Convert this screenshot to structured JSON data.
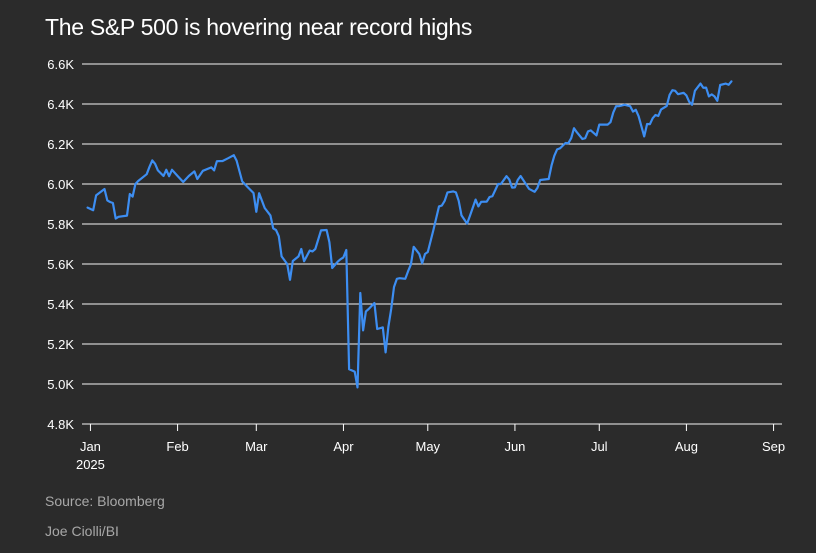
{
  "page": {
    "title": "The S&P 500 is hovering near record highs",
    "source": "Source: Bloomberg",
    "credit": "Joe Ciolli/BI"
  },
  "colors": {
    "background": "#2b2b2b",
    "line": "#3d8ef2",
    "grid": "#ffffff",
    "text": "#ffffff",
    "muted": "#a8a8a8"
  },
  "chart_data": {
    "type": "line",
    "title": "The S&P 500 is hovering near record highs",
    "xlabel": "",
    "ylabel": "",
    "ylim": [
      4800,
      6600
    ],
    "xlim": [
      -3,
      246
    ],
    "grid": true,
    "yticks": [
      {
        "value": 4800,
        "label": "4.8K"
      },
      {
        "value": 5000,
        "label": "5.0K"
      },
      {
        "value": 5200,
        "label": "5.2K"
      },
      {
        "value": 5400,
        "label": "5.4K"
      },
      {
        "value": 5600,
        "label": "5.6K"
      },
      {
        "value": 5800,
        "label": "5.8K"
      },
      {
        "value": 6000,
        "label": "6.0K"
      },
      {
        "value": 6200,
        "label": "6.2K"
      },
      {
        "value": 6400,
        "label": "6.4K"
      },
      {
        "value": 6600,
        "label": "6.6K"
      }
    ],
    "xticks": [
      {
        "day": 0,
        "label": "Jan",
        "sublabel": "2025"
      },
      {
        "day": 31,
        "label": "Feb"
      },
      {
        "day": 59,
        "label": "Mar"
      },
      {
        "day": 90,
        "label": "Apr"
      },
      {
        "day": 120,
        "label": "May"
      },
      {
        "day": 151,
        "label": "Jun"
      },
      {
        "day": 181,
        "label": "Jul"
      },
      {
        "day": 212,
        "label": "Aug"
      },
      {
        "day": 243,
        "label": "Sep"
      }
    ],
    "series": [
      {
        "name": "S&P 500",
        "x_unit": "days since Jan 1, 2025",
        "points": [
          [
            -1,
            5882
          ],
          [
            1,
            5869
          ],
          [
            2,
            5943
          ],
          [
            5,
            5975
          ],
          [
            6,
            5918
          ],
          [
            7,
            5910
          ],
          [
            8,
            5905
          ],
          [
            9,
            5827
          ],
          [
            10,
            5836
          ],
          [
            13,
            5842
          ],
          [
            14,
            5950
          ],
          [
            15,
            5937
          ],
          [
            16,
            6000
          ],
          [
            17,
            6015
          ],
          [
            20,
            6049
          ],
          [
            21,
            6086
          ],
          [
            22,
            6118
          ],
          [
            23,
            6101
          ],
          [
            24,
            6068
          ],
          [
            26,
            6040
          ],
          [
            27,
            6071
          ],
          [
            28,
            6039
          ],
          [
            29,
            6071
          ],
          [
            31,
            6040
          ],
          [
            33,
            6010
          ],
          [
            35,
            6040
          ],
          [
            37,
            6063
          ],
          [
            38,
            6025
          ],
          [
            40,
            6066
          ],
          [
            43,
            6083
          ],
          [
            44,
            6068
          ],
          [
            45,
            6114
          ],
          [
            47,
            6115
          ],
          [
            49,
            6129
          ],
          [
            51,
            6144
          ],
          [
            52,
            6117
          ],
          [
            54,
            6013
          ],
          [
            56,
            5983
          ],
          [
            58,
            5955
          ],
          [
            59,
            5861
          ],
          [
            60,
            5954
          ],
          [
            62,
            5880
          ],
          [
            64,
            5843
          ],
          [
            65,
            5778
          ],
          [
            66,
            5770
          ],
          [
            67,
            5739
          ],
          [
            68,
            5638
          ],
          [
            70,
            5600
          ],
          [
            71,
            5521
          ],
          [
            72,
            5615
          ],
          [
            74,
            5638
          ],
          [
            75,
            5675
          ],
          [
            76,
            5614
          ],
          [
            78,
            5667
          ],
          [
            79,
            5663
          ],
          [
            80,
            5675
          ],
          [
            82,
            5768
          ],
          [
            84,
            5770
          ],
          [
            85,
            5709
          ],
          [
            86,
            5580
          ],
          [
            88,
            5612
          ],
          [
            89,
            5624
          ],
          [
            90,
            5633
          ],
          [
            91,
            5670
          ],
          [
            92,
            5074
          ],
          [
            94,
            5062
          ],
          [
            95,
            4983
          ],
          [
            96,
            5455
          ],
          [
            97,
            5268
          ],
          [
            98,
            5363
          ],
          [
            99,
            5375
          ],
          [
            101,
            5405
          ],
          [
            102,
            5275
          ],
          [
            104,
            5283
          ],
          [
            105,
            5158
          ],
          [
            106,
            5287
          ],
          [
            107,
            5375
          ],
          [
            108,
            5485
          ],
          [
            109,
            5526
          ],
          [
            110,
            5529
          ],
          [
            112,
            5526
          ],
          [
            113,
            5564
          ],
          [
            114,
            5598
          ],
          [
            115,
            5686
          ],
          [
            117,
            5650
          ],
          [
            118,
            5604
          ],
          [
            119,
            5650
          ],
          [
            120,
            5660
          ],
          [
            122,
            5770
          ],
          [
            124,
            5888
          ],
          [
            125,
            5892
          ],
          [
            126,
            5916
          ],
          [
            127,
            5958
          ],
          [
            129,
            5963
          ],
          [
            130,
            5958
          ],
          [
            131,
            5916
          ],
          [
            132,
            5843
          ],
          [
            134,
            5802
          ],
          [
            135,
            5842
          ],
          [
            137,
            5922
          ],
          [
            138,
            5888
          ],
          [
            139,
            5911
          ],
          [
            141,
            5912
          ],
          [
            142,
            5935
          ],
          [
            143,
            5939
          ],
          [
            144,
            5970
          ],
          [
            145,
            6000
          ],
          [
            146,
            6000
          ],
          [
            148,
            6039
          ],
          [
            149,
            6022
          ],
          [
            150,
            5982
          ],
          [
            151,
            5983
          ],
          [
            152,
            6020
          ],
          [
            153,
            6040
          ],
          [
            156,
            5976
          ],
          [
            158,
            5961
          ],
          [
            159,
            5980
          ],
          [
            160,
            6020
          ],
          [
            163,
            6025
          ],
          [
            164,
            6092
          ],
          [
            165,
            6141
          ],
          [
            166,
            6173
          ],
          [
            167,
            6178
          ],
          [
            169,
            6205
          ],
          [
            170,
            6204
          ],
          [
            171,
            6229
          ],
          [
            172,
            6279
          ],
          [
            173,
            6259
          ],
          [
            175,
            6225
          ],
          [
            176,
            6229
          ],
          [
            177,
            6263
          ],
          [
            178,
            6268
          ],
          [
            180,
            6243
          ],
          [
            181,
            6297
          ],
          [
            184,
            6297
          ],
          [
            185,
            6309
          ],
          [
            186,
            6358
          ],
          [
            187,
            6389
          ],
          [
            188,
            6389
          ],
          [
            190,
            6396
          ],
          [
            192,
            6389
          ],
          [
            193,
            6362
          ],
          [
            194,
            6371
          ],
          [
            195,
            6339
          ],
          [
            197,
            6238
          ],
          [
            198,
            6300
          ],
          [
            199,
            6299
          ],
          [
            200,
            6329
          ],
          [
            201,
            6345
          ],
          [
            202,
            6340
          ],
          [
            203,
            6373
          ],
          [
            205,
            6390
          ],
          [
            206,
            6446
          ],
          [
            207,
            6469
          ],
          [
            208,
            6466
          ],
          [
            209,
            6449
          ],
          [
            211,
            6456
          ],
          [
            212,
            6443
          ],
          [
            213,
            6411
          ],
          [
            214,
            6396
          ],
          [
            215,
            6466
          ],
          [
            217,
            6502
          ],
          [
            218,
            6481
          ],
          [
            219,
            6482
          ],
          [
            220,
            6438
          ],
          [
            221,
            6448
          ],
          [
            222,
            6438
          ],
          [
            223,
            6416
          ],
          [
            224,
            6495
          ],
          [
            226,
            6502
          ],
          [
            227,
            6496
          ],
          [
            228,
            6513
          ]
        ]
      }
    ]
  }
}
